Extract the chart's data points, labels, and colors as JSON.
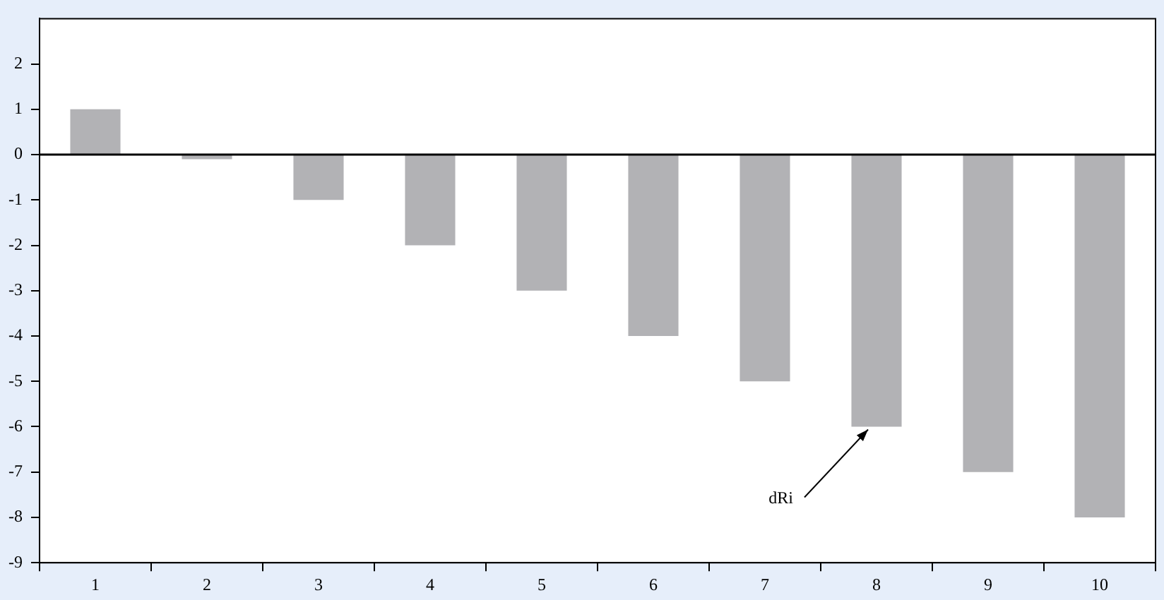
{
  "chart_data": {
    "type": "bar",
    "categories": [
      "1",
      "2",
      "3",
      "4",
      "5",
      "6",
      "7",
      "8",
      "9",
      "10"
    ],
    "values": [
      1,
      -0.1,
      -1,
      -2,
      -3,
      -4,
      -5,
      -6,
      -7,
      -8
    ],
    "color": "#b2b2b5",
    "ylim": [
      -9,
      3
    ],
    "yticks": [
      -9,
      -8,
      -7,
      -6,
      -5,
      -4,
      -3,
      -2,
      -1,
      0,
      1,
      2
    ],
    "annotations": [
      {
        "text": "dRi",
        "x": "8",
        "y": -6
      }
    ],
    "ref_lines": [
      {
        "axis": "y",
        "value": 0,
        "color": "#000000"
      }
    ],
    "legend": false,
    "grid": false
  }
}
